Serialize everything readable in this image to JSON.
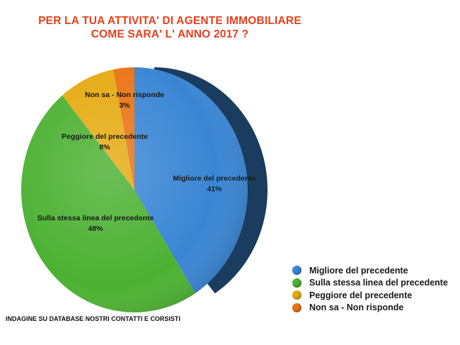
{
  "title": {
    "line1": "PER LA TUA ATTIVITA' DI AGENTE IMMOBILIARE",
    "line2": "COME SARA' L' ANNO 2017 ?"
  },
  "chart_data": {
    "type": "pie",
    "title": "PER LA TUA ATTIVITA' DI AGENTE IMMOBILIARE COME SARA' L' ANNO 2017 ?",
    "legend_position": "bottom-right",
    "slices": [
      {
        "label": "Migliore del precedente",
        "value": 41,
        "value_label": "41%",
        "color": "#3a86d4"
      },
      {
        "label": "Sulla stessa linea del precedente",
        "value": 48,
        "value_label": "48%",
        "color": "#4cb132"
      },
      {
        "label": "Peggiore del precedente",
        "value": 8,
        "value_label": "8%",
        "color": "#e6ab13"
      },
      {
        "label": "Non sa - Non risponde",
        "value": 3,
        "value_label": "3%",
        "color": "#ea7416"
      }
    ]
  },
  "legend": {
    "items": [
      {
        "label": "Migliore del precedente",
        "color": "#3a86d4"
      },
      {
        "label": "Sulla stessa linea del precedente",
        "color": "#4cb132"
      },
      {
        "label": "Peggiore del precedente",
        "color": "#e6ab13"
      },
      {
        "label": "Non sa - Non risponde",
        "color": "#ea7416"
      }
    ]
  },
  "footer": {
    "note": "INDAGINE SU DATABASE NOSTRI CONTATTI E CORSISTI"
  }
}
